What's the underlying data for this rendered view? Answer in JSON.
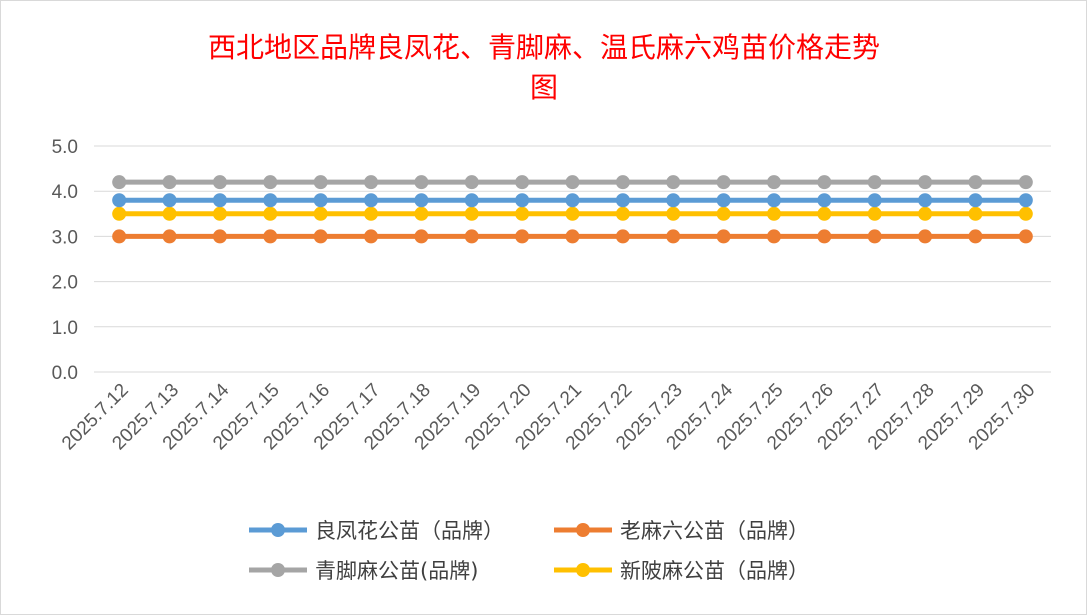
{
  "chart_data": {
    "type": "line",
    "title_lines": [
      "西北地区品牌良凤花、青脚麻、温氏麻六鸡苗价格走势",
      "图"
    ],
    "xlabel": "",
    "ylabel": "",
    "ylim": [
      0,
      5
    ],
    "y_ticks": [
      "0.0",
      "1.0",
      "2.0",
      "3.0",
      "4.0",
      "5.0"
    ],
    "grid": true,
    "legend_position": "bottom",
    "x": [
      "2025.7.12",
      "2025.7.13",
      "2025.7.14",
      "2025.7.15",
      "2025.7.16",
      "2025.7.17",
      "2025.7.18",
      "2025.7.19",
      "2025.7.20",
      "2025.7.21",
      "2025.7.22",
      "2025.7.23",
      "2025.7.24",
      "2025.7.25",
      "2025.7.26",
      "2025.7.27",
      "2025.7.28",
      "2025.7.29",
      "2025.7.30"
    ],
    "series": [
      {
        "name": "良凤花公苗（品牌）",
        "color": "#5b9bd5",
        "values": [
          3.8,
          3.8,
          3.8,
          3.8,
          3.8,
          3.8,
          3.8,
          3.8,
          3.8,
          3.8,
          3.8,
          3.8,
          3.8,
          3.8,
          3.8,
          3.8,
          3.8,
          3.8,
          3.8
        ]
      },
      {
        "name": "老麻六公苗（品牌）",
        "color": "#ed7d31",
        "values": [
          3.0,
          3.0,
          3.0,
          3.0,
          3.0,
          3.0,
          3.0,
          3.0,
          3.0,
          3.0,
          3.0,
          3.0,
          3.0,
          3.0,
          3.0,
          3.0,
          3.0,
          3.0,
          3.0
        ]
      },
      {
        "name": "青脚麻公苗(品牌)",
        "color": "#a5a5a5",
        "values": [
          4.2,
          4.2,
          4.2,
          4.2,
          4.2,
          4.2,
          4.2,
          4.2,
          4.2,
          4.2,
          4.2,
          4.2,
          4.2,
          4.2,
          4.2,
          4.2,
          4.2,
          4.2,
          4.2
        ]
      },
      {
        "name": "新陂麻公苗（品牌）",
        "color": "#ffc000",
        "values": [
          3.5,
          3.5,
          3.5,
          3.5,
          3.5,
          3.5,
          3.5,
          3.5,
          3.5,
          3.5,
          3.5,
          3.5,
          3.5,
          3.5,
          3.5,
          3.5,
          3.5,
          3.5,
          3.5
        ]
      }
    ]
  }
}
